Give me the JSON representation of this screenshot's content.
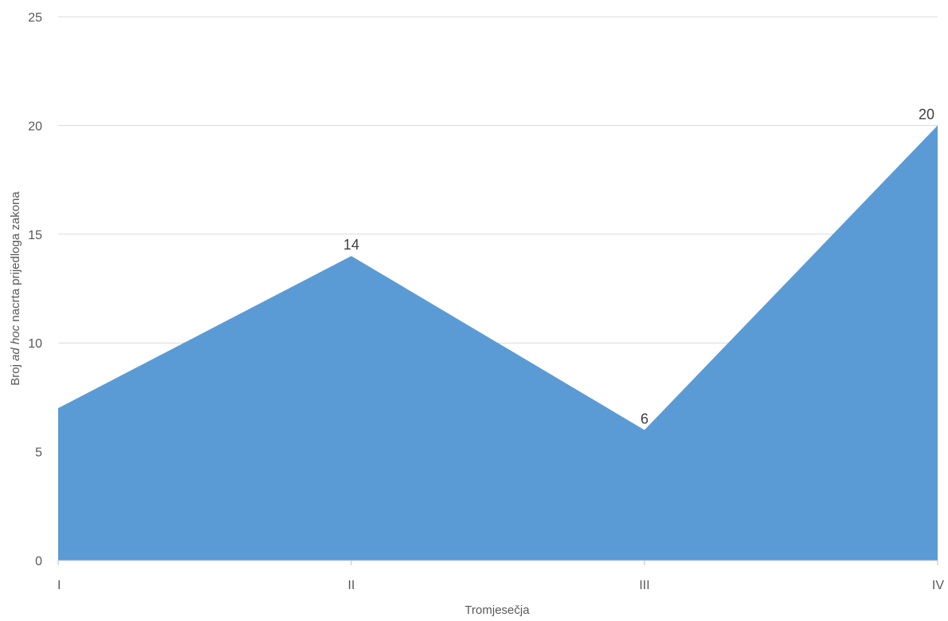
{
  "chart_data": {
    "type": "area",
    "categories": [
      "I",
      "II",
      "III",
      "IV"
    ],
    "series": [
      {
        "values": [
          7,
          14,
          6,
          20
        ]
      }
    ],
    "data_labels": [
      "",
      "14",
      "6",
      "20"
    ],
    "xlabel": "Tromjesečja",
    "ylabel": {
      "before": "Broj ",
      "italic": "ad hoc",
      "after": " nacrta prijedloga zakona"
    },
    "ylim": [
      0,
      25
    ],
    "yticks": [
      0,
      5,
      10,
      15,
      20,
      25
    ],
    "grid": true,
    "legend": "none",
    "color": "#5b9bd5"
  }
}
